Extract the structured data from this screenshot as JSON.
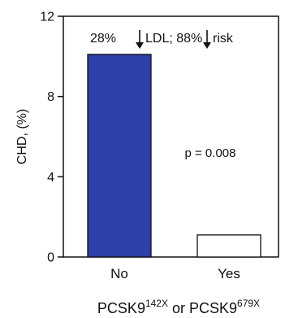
{
  "chart_data": {
    "type": "bar",
    "categories": [
      "No",
      "Yes"
    ],
    "values": [
      10.1,
      1.1
    ],
    "bar_fills": [
      "#2e3fa8",
      "#ffffff"
    ],
    "ylabel": "CHD, (%)",
    "ylim": [
      0,
      12
    ],
    "yticks": [
      0,
      4,
      8,
      12
    ],
    "grid": false,
    "annotations": {
      "ldl_pct": "28%",
      "ldl_text": "LDL; 88%",
      "risk_text": "risk",
      "pvalue": "p = 0.008"
    },
    "xlabel": {
      "gene_a": "PCSK9",
      "sup_a": "142X",
      "joiner": " or ",
      "gene_b": "PCSK9",
      "sup_b": "679X"
    }
  }
}
